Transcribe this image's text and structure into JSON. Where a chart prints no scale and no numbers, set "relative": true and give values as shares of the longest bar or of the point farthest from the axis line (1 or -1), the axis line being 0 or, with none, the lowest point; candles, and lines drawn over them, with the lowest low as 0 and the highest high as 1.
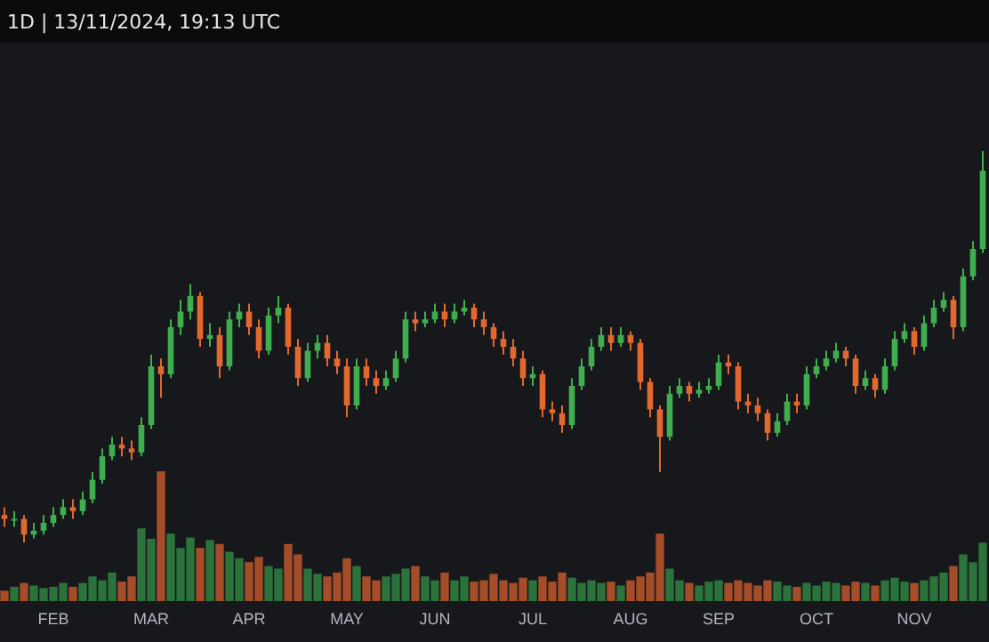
{
  "chart_data": [
    {
      "type": "candlestick",
      "title": "1D | 13/11/2024, 19:13 UTC",
      "relative": true,
      "categories": [
        null,
        null,
        null,
        null,
        null,
        "FEB",
        null,
        null,
        null,
        null,
        null,
        null,
        null,
        null,
        null,
        "MAR",
        null,
        null,
        null,
        null,
        null,
        null,
        null,
        null,
        null,
        "APR",
        null,
        null,
        null,
        null,
        null,
        null,
        null,
        null,
        null,
        "MAY",
        null,
        null,
        null,
        null,
        null,
        null,
        null,
        null,
        "JUN",
        null,
        null,
        null,
        null,
        null,
        null,
        null,
        null,
        null,
        "JUL",
        null,
        null,
        null,
        null,
        null,
        null,
        null,
        null,
        null,
        "AUG",
        null,
        null,
        null,
        null,
        null,
        null,
        null,
        null,
        "SEP",
        null,
        null,
        null,
        null,
        null,
        null,
        null,
        null,
        null,
        "OCT",
        null,
        null,
        null,
        null,
        null,
        null,
        null,
        null,
        null,
        "NOV",
        null,
        null,
        null,
        null,
        null,
        null,
        null
      ],
      "ohlc": [
        [
          0.07,
          0.09,
          0.04,
          0.06
        ],
        [
          0.06,
          0.08,
          0.04,
          0.06
        ],
        [
          0.06,
          0.07,
          0,
          0.02
        ],
        [
          0.02,
          0.05,
          0.01,
          0.03
        ],
        [
          0.03,
          0.07,
          0.02,
          0.05
        ],
        [
          0.05,
          0.09,
          0.04,
          0.07
        ],
        [
          0.07,
          0.11,
          0.06,
          0.09
        ],
        [
          0.09,
          0.11,
          0.06,
          0.08
        ],
        [
          0.08,
          0.13,
          0.07,
          0.11
        ],
        [
          0.11,
          0.18,
          0.1,
          0.16
        ],
        [
          0.16,
          0.24,
          0.15,
          0.22
        ],
        [
          0.22,
          0.27,
          0.21,
          0.25
        ],
        [
          0.25,
          0.27,
          0.22,
          0.24
        ],
        [
          0.24,
          0.26,
          0.21,
          0.23
        ],
        [
          0.23,
          0.32,
          0.22,
          0.3
        ],
        [
          0.3,
          0.48,
          0.29,
          0.45
        ],
        [
          0.45,
          0.47,
          0.37,
          0.43
        ],
        [
          0.43,
          0.57,
          0.42,
          0.55
        ],
        [
          0.55,
          0.62,
          0.53,
          0.59
        ],
        [
          0.59,
          0.66,
          0.57,
          0.63
        ],
        [
          0.63,
          0.64,
          0.5,
          0.52
        ],
        [
          0.52,
          0.56,
          0.5,
          0.53
        ],
        [
          0.53,
          0.55,
          0.42,
          0.45
        ],
        [
          0.45,
          0.59,
          0.44,
          0.57
        ],
        [
          0.57,
          0.61,
          0.55,
          0.59
        ],
        [
          0.59,
          0.61,
          0.53,
          0.55
        ],
        [
          0.55,
          0.57,
          0.47,
          0.49
        ],
        [
          0.49,
          0.6,
          0.48,
          0.58
        ],
        [
          0.58,
          0.63,
          0.56,
          0.6
        ],
        [
          0.6,
          0.61,
          0.48,
          0.5
        ],
        [
          0.5,
          0.52,
          0.4,
          0.42
        ],
        [
          0.42,
          0.51,
          0.41,
          0.49
        ],
        [
          0.49,
          0.53,
          0.47,
          0.51
        ],
        [
          0.51,
          0.53,
          0.45,
          0.47
        ],
        [
          0.47,
          0.49,
          0.43,
          0.45
        ],
        [
          0.45,
          0.47,
          0.32,
          0.35
        ],
        [
          0.35,
          0.47,
          0.34,
          0.45
        ],
        [
          0.45,
          0.47,
          0.4,
          0.42
        ],
        [
          0.42,
          0.44,
          0.38,
          0.4
        ],
        [
          0.4,
          0.44,
          0.39,
          0.42
        ],
        [
          0.42,
          0.49,
          0.41,
          0.47
        ],
        [
          0.47,
          0.59,
          0.46,
          0.57
        ],
        [
          0.57,
          0.59,
          0.54,
          0.56
        ],
        [
          0.56,
          0.59,
          0.55,
          0.57
        ],
        [
          0.57,
          0.61,
          0.56,
          0.59
        ],
        [
          0.59,
          0.61,
          0.55,
          0.57
        ],
        [
          0.57,
          0.61,
          0.56,
          0.59
        ],
        [
          0.59,
          0.62,
          0.58,
          0.6
        ],
        [
          0.6,
          0.61,
          0.55,
          0.57
        ],
        [
          0.57,
          0.59,
          0.53,
          0.55
        ],
        [
          0.55,
          0.56,
          0.5,
          0.52
        ],
        [
          0.52,
          0.54,
          0.48,
          0.5
        ],
        [
          0.5,
          0.52,
          0.45,
          0.47
        ],
        [
          0.47,
          0.49,
          0.4,
          0.42
        ],
        [
          0.42,
          0.45,
          0.4,
          0.43
        ],
        [
          0.43,
          0.44,
          0.32,
          0.34
        ],
        [
          0.34,
          0.36,
          0.31,
          0.33
        ],
        [
          0.33,
          0.35,
          0.28,
          0.3
        ],
        [
          0.3,
          0.42,
          0.29,
          0.4
        ],
        [
          0.4,
          0.47,
          0.39,
          0.45
        ],
        [
          0.45,
          0.52,
          0.44,
          0.5
        ],
        [
          0.5,
          0.55,
          0.49,
          0.53
        ],
        [
          0.53,
          0.55,
          0.49,
          0.51
        ],
        [
          0.51,
          0.55,
          0.5,
          0.53
        ],
        [
          0.53,
          0.54,
          0.49,
          0.51
        ],
        [
          0.51,
          0.52,
          0.39,
          0.41
        ],
        [
          0.41,
          0.42,
          0.32,
          0.34
        ],
        [
          0.34,
          0.35,
          0.18,
          0.27
        ],
        [
          0.27,
          0.4,
          0.26,
          0.38
        ],
        [
          0.38,
          0.42,
          0.37,
          0.4
        ],
        [
          0.4,
          0.41,
          0.36,
          0.38
        ],
        [
          0.38,
          0.41,
          0.37,
          0.39
        ],
        [
          0.39,
          0.42,
          0.38,
          0.4
        ],
        [
          0.4,
          0.48,
          0.39,
          0.46
        ],
        [
          0.46,
          0.48,
          0.43,
          0.45
        ],
        [
          0.45,
          0.46,
          0.34,
          0.36
        ],
        [
          0.36,
          0.38,
          0.33,
          0.35
        ],
        [
          0.35,
          0.37,
          0.31,
          0.33
        ],
        [
          0.33,
          0.34,
          0.26,
          0.28
        ],
        [
          0.28,
          0.33,
          0.27,
          0.31
        ],
        [
          0.31,
          0.38,
          0.3,
          0.36
        ],
        [
          0.36,
          0.38,
          0.33,
          0.35
        ],
        [
          0.35,
          0.45,
          0.34,
          0.43
        ],
        [
          0.43,
          0.47,
          0.42,
          0.45
        ],
        [
          0.45,
          0.49,
          0.44,
          0.47
        ],
        [
          0.47,
          0.51,
          0.46,
          0.49
        ],
        [
          0.49,
          0.5,
          0.45,
          0.47
        ],
        [
          0.47,
          0.48,
          0.38,
          0.4
        ],
        [
          0.4,
          0.44,
          0.39,
          0.42
        ],
        [
          0.42,
          0.43,
          0.37,
          0.39
        ],
        [
          0.39,
          0.47,
          0.38,
          0.45
        ],
        [
          0.45,
          0.54,
          0.44,
          0.52
        ],
        [
          0.52,
          0.56,
          0.51,
          0.54
        ],
        [
          0.54,
          0.55,
          0.48,
          0.5
        ],
        [
          0.5,
          0.58,
          0.49,
          0.56
        ],
        [
          0.56,
          0.62,
          0.55,
          0.6
        ],
        [
          0.6,
          0.64,
          0.59,
          0.62
        ],
        [
          0.62,
          0.63,
          0.52,
          0.55
        ],
        [
          0.55,
          0.7,
          0.54,
          0.68
        ],
        [
          0.68,
          0.77,
          0.67,
          0.75
        ],
        [
          0.75,
          1,
          0.74,
          0.95
        ]
      ]
    },
    {
      "type": "bar",
      "relative": true,
      "categories": [
        null,
        null,
        null,
        null,
        null,
        null,
        null,
        null,
        null,
        null,
        null,
        null,
        null,
        null,
        null,
        null,
        null,
        null,
        null,
        null,
        null,
        null,
        null,
        null,
        null,
        null,
        null,
        null,
        null,
        null,
        null,
        null,
        null,
        null,
        null,
        null,
        null,
        null,
        null,
        null,
        null,
        null,
        null,
        null,
        null,
        null,
        null,
        null,
        null,
        null,
        null,
        null,
        null,
        null,
        null,
        null,
        null,
        null,
        null,
        null,
        null,
        null,
        null,
        null,
        null,
        null,
        null,
        null,
        null,
        null,
        null,
        null,
        null,
        null,
        null,
        null,
        null,
        null,
        null,
        null,
        null,
        null,
        null,
        null,
        null,
        null,
        null,
        null,
        null,
        null,
        null,
        null,
        null,
        null,
        null,
        null,
        null,
        null,
        null,
        null,
        null
      ],
      "values": [
        0.08,
        0.11,
        0.14,
        0.12,
        0.1,
        0.11,
        0.14,
        0.11,
        0.14,
        0.19,
        0.16,
        0.22,
        0.15,
        0.19,
        0.56,
        0.48,
        1,
        0.52,
        0.41,
        0.49,
        0.41,
        0.47,
        0.44,
        0.38,
        0.33,
        0.3,
        0.34,
        0.27,
        0.25,
        0.44,
        0.36,
        0.25,
        0.21,
        0.19,
        0.22,
        0.33,
        0.27,
        0.19,
        0.16,
        0.19,
        0.21,
        0.25,
        0.27,
        0.19,
        0.16,
        0.22,
        0.16,
        0.19,
        0.15,
        0.16,
        0.21,
        0.16,
        0.14,
        0.18,
        0.16,
        0.19,
        0.15,
        0.22,
        0.18,
        0.14,
        0.16,
        0.14,
        0.15,
        0.12,
        0.16,
        0.19,
        0.22,
        0.52,
        0.25,
        0.16,
        0.14,
        0.12,
        0.15,
        0.16,
        0.14,
        0.16,
        0.14,
        0.12,
        0.16,
        0.15,
        0.12,
        0.11,
        0.14,
        0.12,
        0.15,
        0.14,
        0.12,
        0.15,
        0.14,
        0.12,
        0.16,
        0.18,
        0.15,
        0.14,
        0.16,
        0.19,
        0.22,
        0.27,
        0.36,
        0.3,
        0.45
      ],
      "colors": [
        "#b4532a",
        "#2e7d3f",
        "#b4532a",
        "#2e7d3f",
        "#2e7d3f",
        "#2e7d3f",
        "#2e7d3f",
        "#b4532a",
        "#2e7d3f",
        "#2e7d3f",
        "#2e7d3f",
        "#2e7d3f",
        "#b4532a",
        "#b4532a",
        "#2e7d3f",
        "#2e7d3f",
        "#b4532a",
        "#2e7d3f",
        "#2e7d3f",
        "#2e7d3f",
        "#b4532a",
        "#2e7d3f",
        "#b4532a",
        "#2e7d3f",
        "#2e7d3f",
        "#b4532a",
        "#b4532a",
        "#2e7d3f",
        "#2e7d3f",
        "#b4532a",
        "#b4532a",
        "#2e7d3f",
        "#2e7d3f",
        "#b4532a",
        "#b4532a",
        "#b4532a",
        "#2e7d3f",
        "#b4532a",
        "#b4532a",
        "#2e7d3f",
        "#2e7d3f",
        "#2e7d3f",
        "#b4532a",
        "#2e7d3f",
        "#2e7d3f",
        "#b4532a",
        "#2e7d3f",
        "#2e7d3f",
        "#b4532a",
        "#b4532a",
        "#b4532a",
        "#b4532a",
        "#b4532a",
        "#b4532a",
        "#2e7d3f",
        "#b4532a",
        "#b4532a",
        "#b4532a",
        "#2e7d3f",
        "#2e7d3f",
        "#2e7d3f",
        "#2e7d3f",
        "#b4532a",
        "#2e7d3f",
        "#b4532a",
        "#b4532a",
        "#b4532a",
        "#b4532a",
        "#2e7d3f",
        "#2e7d3f",
        "#b4532a",
        "#2e7d3f",
        "#2e7d3f",
        "#2e7d3f",
        "#b4532a",
        "#b4532a",
        "#b4532a",
        "#b4532a",
        "#b4532a",
        "#2e7d3f",
        "#2e7d3f",
        "#b4532a",
        "#2e7d3f",
        "#2e7d3f",
        "#2e7d3f",
        "#2e7d3f",
        "#b4532a",
        "#b4532a",
        "#2e7d3f",
        "#b4532a",
        "#2e7d3f",
        "#2e7d3f",
        "#2e7d3f",
        "#b4532a",
        "#2e7d3f",
        "#2e7d3f",
        "#2e7d3f",
        "#b4532a",
        "#2e7d3f",
        "#2e7d3f",
        "#2e7d3f"
      ]
    }
  ]
}
